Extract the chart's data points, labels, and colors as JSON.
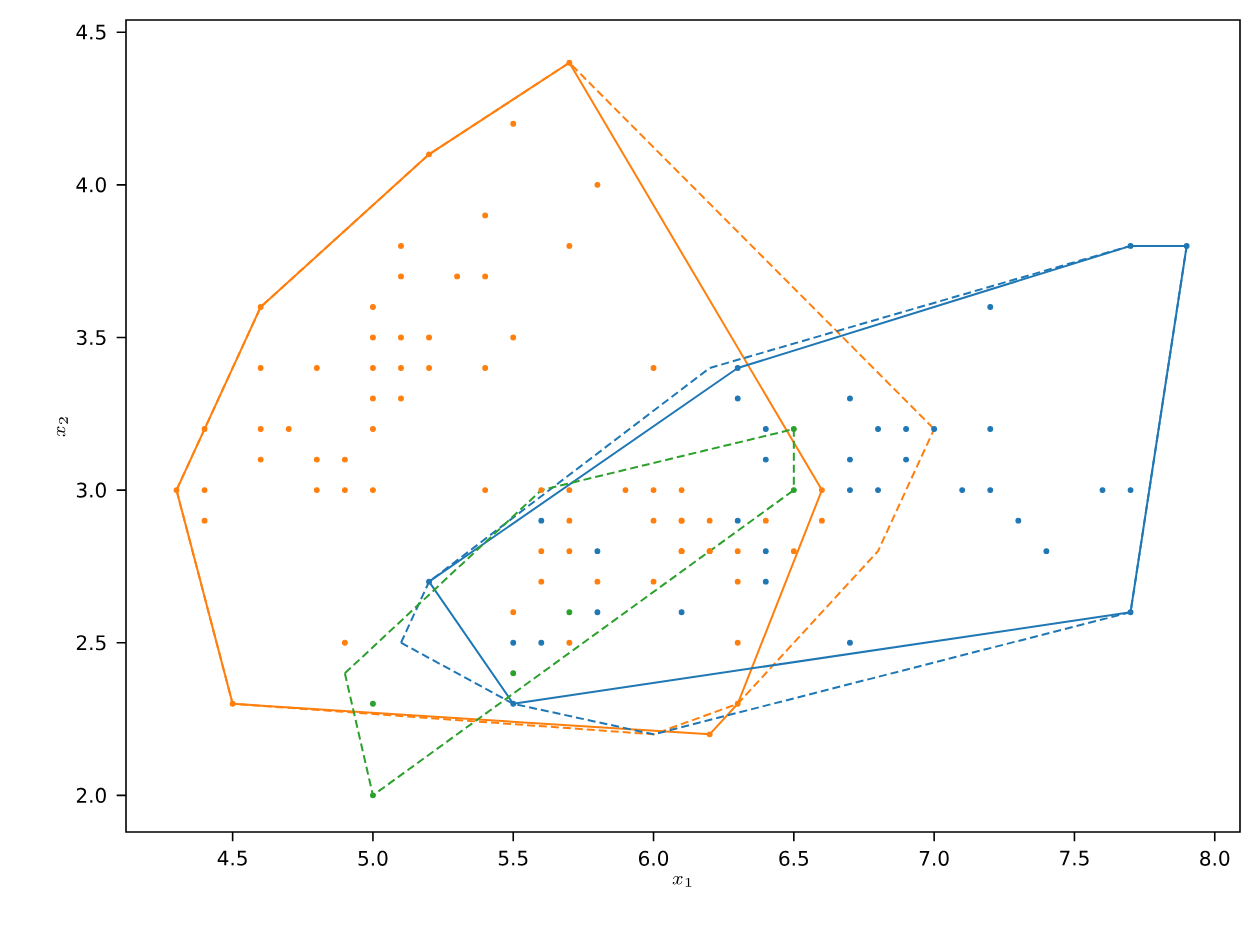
{
  "chart_data": {
    "type": "scatter",
    "xlabel": "x_1",
    "ylabel": "x_2",
    "xlim": [
      4.12,
      8.09
    ],
    "ylim": [
      1.88,
      4.54
    ],
    "xticks": [
      {
        "value": 4.5,
        "label": "4.5"
      },
      {
        "value": 5.0,
        "label": "5.0"
      },
      {
        "value": 5.5,
        "label": "5.5"
      },
      {
        "value": 6.0,
        "label": "6.0"
      },
      {
        "value": 6.5,
        "label": "6.5"
      },
      {
        "value": 7.0,
        "label": "7.0"
      },
      {
        "value": 7.5,
        "label": "7.5"
      },
      {
        "value": 8.0,
        "label": "8.0"
      }
    ],
    "yticks": [
      {
        "value": 2.0,
        "label": "2.0"
      },
      {
        "value": 2.5,
        "label": "2.5"
      },
      {
        "value": 3.0,
        "label": "3.0"
      },
      {
        "value": 3.5,
        "label": "3.5"
      },
      {
        "value": 4.0,
        "label": "4.0"
      },
      {
        "value": 4.5,
        "label": "4.5"
      }
    ],
    "grid": false,
    "series": [
      {
        "type": "scatter",
        "marker": "circle",
        "color": "#ff7f0e",
        "x": [
          5.7,
          5.2,
          4.6,
          4.3,
          4.5,
          6.2,
          6.3,
          6.6,
          5.5,
          5.8,
          5.4,
          5.1,
          5.7,
          5.1,
          5.3,
          5.4,
          5.0,
          5.0,
          5.1,
          5.2,
          5.5,
          4.6,
          4.8,
          5.0,
          5.1,
          5.2,
          5.4,
          6.0,
          5.0,
          5.1,
          4.4,
          4.6,
          4.7,
          5.0,
          4.6,
          4.8,
          4.9,
          4.4,
          4.8,
          4.9,
          5.0,
          5.4,
          5.6,
          5.7,
          5.9,
          6.0,
          6.1,
          4.4,
          5.7,
          6.0,
          6.1,
          6.2,
          5.6,
          5.7,
          6.1,
          5.6,
          5.8,
          6.0,
          5.5,
          4.9,
          5.7,
          6.1,
          6.2,
          6.4,
          6.6,
          6.1,
          6.2,
          6.3,
          6.5,
          6.3,
          6.3
        ],
        "values": [
          4.4,
          4.1,
          3.6,
          3.0,
          2.3,
          2.2,
          2.3,
          3.0,
          4.2,
          4.0,
          3.9,
          3.8,
          3.8,
          3.7,
          3.7,
          3.7,
          3.6,
          3.5,
          3.5,
          3.5,
          3.5,
          3.4,
          3.4,
          3.4,
          3.4,
          3.4,
          3.4,
          3.4,
          3.3,
          3.3,
          3.2,
          3.2,
          3.2,
          3.2,
          3.1,
          3.1,
          3.1,
          3.0,
          3.0,
          3.0,
          3.0,
          3.0,
          3.0,
          3.0,
          3.0,
          3.0,
          3.0,
          2.9,
          2.9,
          2.9,
          2.9,
          2.9,
          2.8,
          2.8,
          2.8,
          2.7,
          2.7,
          2.7,
          2.6,
          2.5,
          2.5,
          2.9,
          2.8,
          2.9,
          2.9,
          2.8,
          2.8,
          2.8,
          2.8,
          2.7,
          2.5
        ]
      },
      {
        "type": "scatter",
        "marker": "circle",
        "color": "#1f77b4",
        "x": [
          5.2,
          5.5,
          6.3,
          7.7,
          7.7,
          7.9,
          5.6,
          5.8,
          5.8,
          6.1,
          5.5,
          5.6,
          7.2,
          6.3,
          6.7,
          6.4,
          6.8,
          6.9,
          7.0,
          7.2,
          6.4,
          6.7,
          6.9,
          6.7,
          6.8,
          7.1,
          7.2,
          7.6,
          7.7,
          6.3,
          7.3,
          6.4,
          7.4,
          6.4,
          6.7
        ],
        "values": [
          2.7,
          2.3,
          3.4,
          2.6,
          3.8,
          3.8,
          2.9,
          2.8,
          2.6,
          2.6,
          2.5,
          2.5,
          3.6,
          3.3,
          3.3,
          3.2,
          3.2,
          3.2,
          3.2,
          3.2,
          3.1,
          3.1,
          3.1,
          3.0,
          3.0,
          3.0,
          3.0,
          3.0,
          3.0,
          2.9,
          2.9,
          2.8,
          2.8,
          2.7,
          2.5
        ]
      },
      {
        "type": "scatter",
        "marker": "circle",
        "color": "#2ca02c",
        "x": [
          5.7,
          5.5,
          5.0,
          5.0,
          6.5,
          6.5
        ],
        "values": [
          2.6,
          2.4,
          2.3,
          2.0,
          3.2,
          3.0
        ]
      },
      {
        "type": "line",
        "marker": "none",
        "line_style": "solid",
        "color": "#ff7f0e",
        "x": [
          4.3,
          4.5,
          6.2,
          6.3,
          6.6
        ],
        "values": [
          3.0,
          2.3,
          2.2,
          2.3,
          3.0
        ]
      },
      {
        "type": "line",
        "marker": "none",
        "line_style": "solid",
        "color": "#ff7f0e",
        "x": [
          4.3,
          4.6,
          5.2,
          5.7,
          6.6
        ],
        "values": [
          3.0,
          3.6,
          4.1,
          4.4,
          3.0
        ]
      },
      {
        "type": "line",
        "marker": "none",
        "line_style": "dashed",
        "color": "#ff7f0e",
        "x": [
          4.3,
          4.5,
          6.0,
          6.3,
          6.8,
          7.0
        ],
        "values": [
          3.0,
          2.3,
          2.2,
          2.3,
          2.8,
          3.2
        ]
      },
      {
        "type": "line",
        "marker": "none",
        "line_style": "dashed",
        "color": "#ff7f0e",
        "x": [
          4.3,
          4.6,
          5.2,
          5.7,
          7.0
        ],
        "values": [
          3.0,
          3.6,
          4.1,
          4.4,
          3.2
        ]
      },
      {
        "type": "line",
        "marker": "none",
        "line_style": "solid",
        "color": "#1f77b4",
        "x": [
          5.2,
          5.5,
          7.7,
          7.9
        ],
        "values": [
          2.7,
          2.3,
          2.6,
          3.8
        ]
      },
      {
        "type": "line",
        "marker": "none",
        "line_style": "solid",
        "color": "#1f77b4",
        "x": [
          5.2,
          6.3,
          7.7,
          7.9
        ],
        "values": [
          2.7,
          3.4,
          3.8,
          3.8
        ]
      },
      {
        "type": "line",
        "marker": "none",
        "line_style": "dashed",
        "color": "#1f77b4",
        "x": [
          5.1,
          5.5,
          6.0,
          7.7,
          7.9
        ],
        "values": [
          2.5,
          2.3,
          2.2,
          2.6,
          3.8
        ]
      },
      {
        "type": "line",
        "marker": "none",
        "line_style": "dashed",
        "color": "#1f77b4",
        "x": [
          5.1,
          5.2,
          6.2,
          7.7,
          7.9
        ],
        "values": [
          2.5,
          2.7,
          3.4,
          3.8,
          3.8
        ]
      },
      {
        "type": "line",
        "marker": "none",
        "line_style": "dashed",
        "color": "#2ca02c",
        "x": [
          4.9,
          5.0,
          6.5
        ],
        "values": [
          2.4,
          2.0,
          3.0
        ]
      },
      {
        "type": "line",
        "marker": "none",
        "line_style": "dashed",
        "color": "#2ca02c",
        "x": [
          4.9,
          5.6,
          6.5,
          6.5
        ],
        "values": [
          2.4,
          3.0,
          3.2,
          3.0
        ]
      }
    ]
  }
}
